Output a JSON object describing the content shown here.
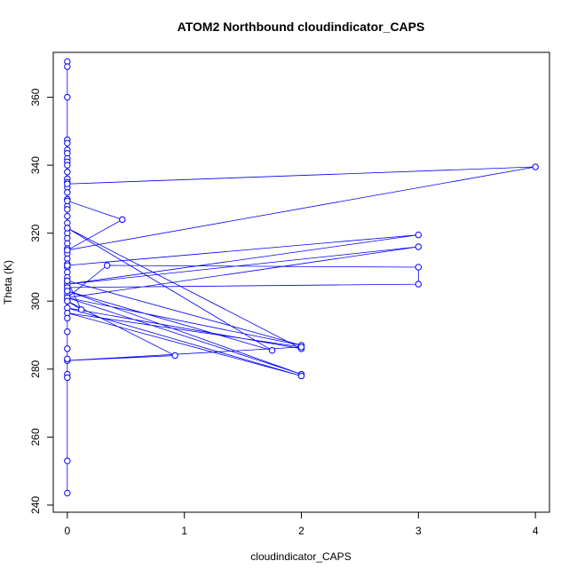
{
  "chart_data": {
    "type": "line",
    "title": "ATOM2 Northbound cloudindicator_CAPS",
    "xlabel": "cloudindicator_CAPS",
    "ylabel": "Theta (K)",
    "xlim": [
      -0.12,
      4.12
    ],
    "ylim": [
      237.9,
      373.2
    ],
    "x_ticks": [
      0,
      1,
      2,
      3,
      4
    ],
    "y_ticks": [
      240,
      260,
      280,
      300,
      320,
      340,
      360
    ],
    "series_color": "#0000ff",
    "marker": "open-circle",
    "x": [
      0,
      0,
      0,
      0,
      0,
      0,
      0,
      0,
      0,
      0,
      0,
      0,
      0,
      0,
      0,
      0,
      0,
      0,
      0,
      0,
      0,
      0,
      0,
      0,
      0,
      0,
      0,
      0,
      0,
      0,
      0,
      0,
      0,
      0,
      0,
      0,
      0,
      4,
      0,
      0.47,
      0,
      0,
      3,
      0,
      3,
      0,
      0.34,
      3,
      3,
      0,
      0,
      0.12,
      0,
      2,
      0,
      2,
      0,
      1.75,
      0,
      2,
      0,
      2,
      0,
      2,
      0,
      0.92,
      0,
      0,
      0,
      0,
      0,
      0,
      0,
      0,
      0
    ],
    "y": [
      370.5,
      369.0,
      360.0,
      347.5,
      346.5,
      344.5,
      343.5,
      342.0,
      341.0,
      340.0,
      338.0,
      336.0,
      335.0,
      333.5,
      332.0,
      330.0,
      328.0,
      327.0,
      325.0,
      323.0,
      321.5,
      320.0,
      318.5,
      317.0,
      315.5,
      314.0,
      312.5,
      311.0,
      310.0,
      308.5,
      307.0,
      306.0,
      305.0,
      304.0,
      303.0,
      302.0,
      334.5,
      339.5,
      315.0,
      324.0,
      329.5,
      310.5,
      319.5,
      305.0,
      316.0,
      301.0,
      310.5,
      310.0,
      305.0,
      304.0,
      300.0,
      297.5,
      306.0,
      287.0,
      301.0,
      278.5,
      303.0,
      285.5,
      321.5,
      286.0,
      298.0,
      278.0,
      296.5,
      286.5,
      282.5,
      284.0,
      300.0,
      295.0,
      291.0,
      286.0,
      283.0,
      278.5,
      277.5,
      253.0,
      243.5
    ]
  }
}
